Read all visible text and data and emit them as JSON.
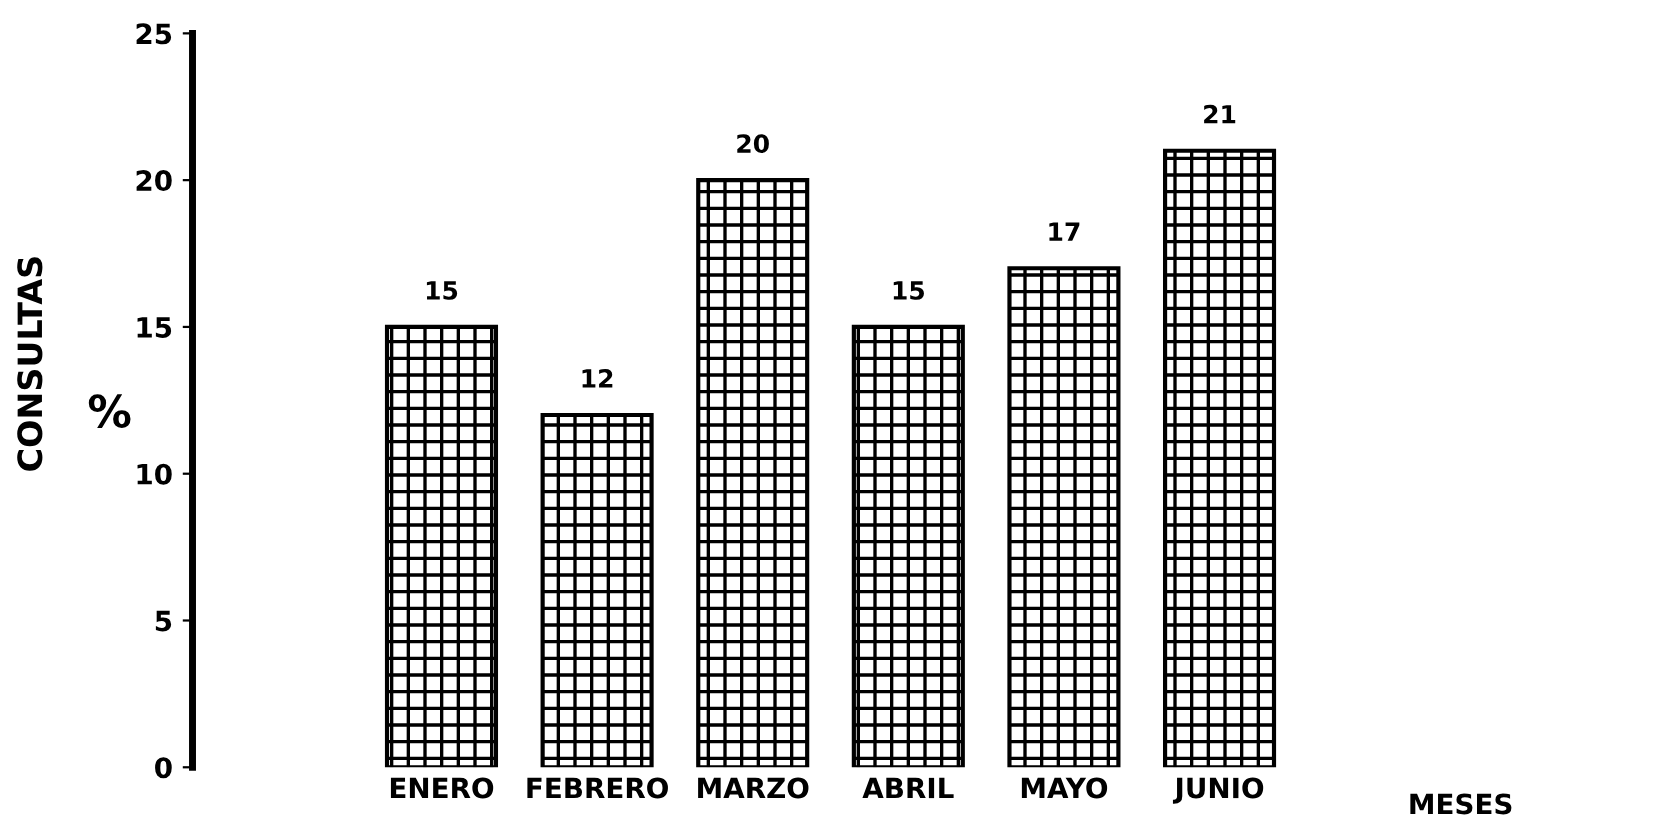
{
  "chart_data": {
    "type": "bar",
    "categories": [
      "ENERO",
      "FEBRERO",
      "MARZO",
      "ABRIL",
      "MAYO",
      "JUNIO"
    ],
    "values": [
      15,
      12,
      20,
      15,
      17,
      21
    ],
    "color": "#000000",
    "xlabel": "MESES",
    "ylabel": "CONSULTAS",
    "annotations": [
      "%"
    ],
    "ylim": [
      0,
      25
    ],
    "yticks": [
      0,
      5,
      10,
      15,
      20,
      25
    ],
    "data_labels": true,
    "grid": false,
    "legend": false
  }
}
